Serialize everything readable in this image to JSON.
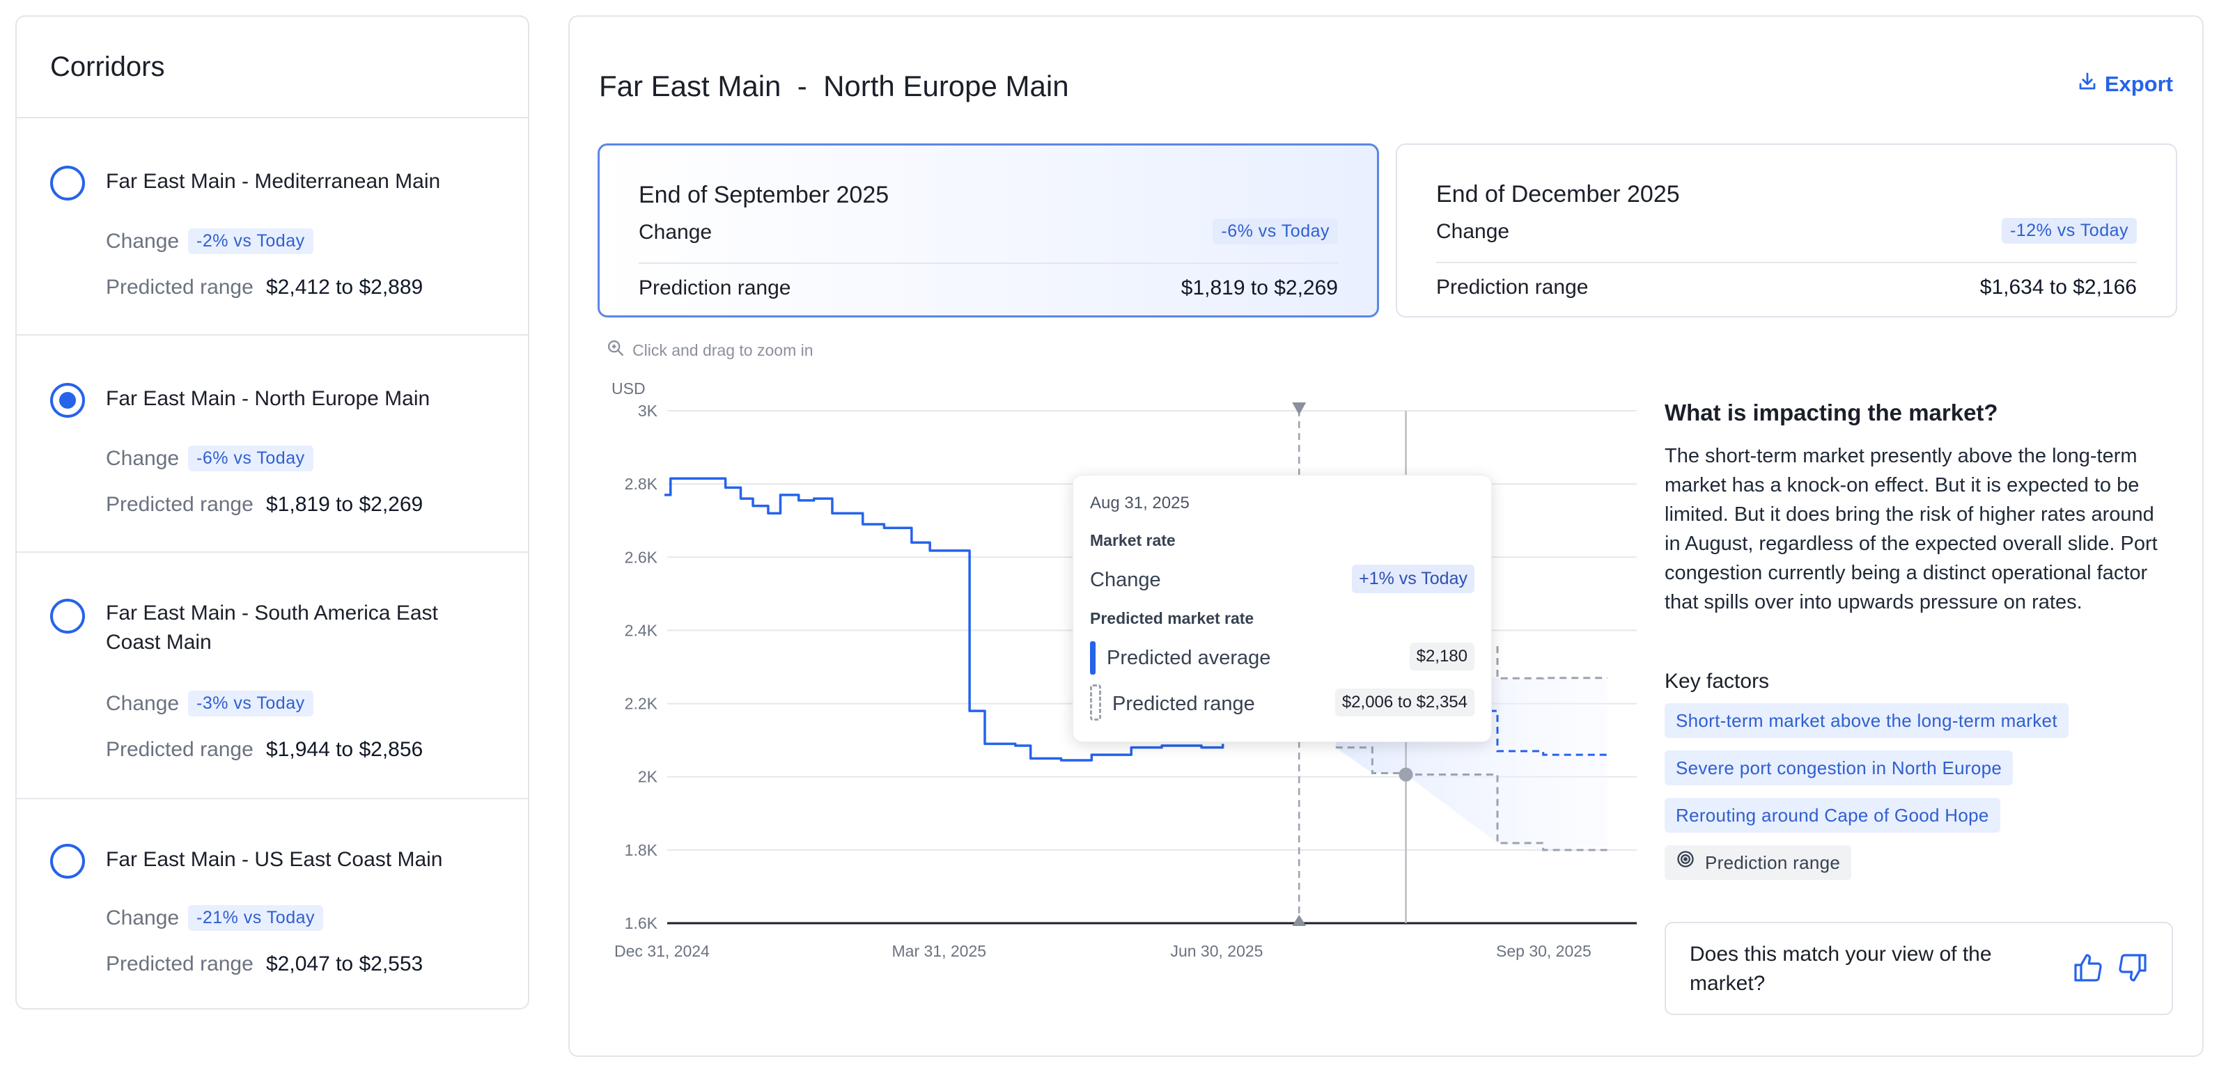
{
  "sidebar": {
    "title": "Corridors",
    "change_label": "Change",
    "range_label": "Predicted range",
    "items": [
      {
        "name": "Far East Main - Mediterranean Main",
        "badge": "-2% vs Today",
        "range": "$2,412 to $2,889",
        "selected": false
      },
      {
        "name": "Far East Main - North Europe Main",
        "badge": "-6% vs Today",
        "range": "$1,819 to $2,269",
        "selected": true
      },
      {
        "name": "Far East Main - South America East Coast Main",
        "badge": "-3% vs Today",
        "range": "$1,944 to $2,856",
        "selected": false
      },
      {
        "name": "Far East Main - US East Coast Main",
        "badge": "-21% vs Today",
        "range": "$2,047 to $2,553",
        "selected": false
      }
    ]
  },
  "main": {
    "title": "Far East Main  -  North Europe Main",
    "export_label": "Export",
    "cards": [
      {
        "title": "End of September 2025",
        "change_label": "Change",
        "badge": "-6% vs Today",
        "range_label": "Prediction range",
        "range": "$1,819 to $2,269",
        "active": true
      },
      {
        "title": "End of December 2025",
        "change_label": "Change",
        "badge": "-12% vs Today",
        "range_label": "Prediction range",
        "range": "$1,634 to $2,166",
        "active": false
      }
    ],
    "zoom_hint": "Click and drag to zoom in"
  },
  "tooltip": {
    "date": "Aug 31, 2025",
    "market_heading": "Market rate",
    "change_label": "Change",
    "change_badge": "+1% vs Today",
    "predicted_heading": "Predicted market rate",
    "avg_label": "Predicted average",
    "avg_value": "$2,180",
    "range_label": "Predicted range",
    "range_value": "$2,006 to $2,354"
  },
  "impact": {
    "title": "What is impacting the market?",
    "body": "The short-term market presently above the long-term market has a knock-on effect. But it is expected to be limited. But it does bring the risk of higher rates around in August, regardless of the expected overall slide. Port congestion currently being a distinct operational factor that spills over into upwards pressure on rates.",
    "key_factors_title": "Key factors",
    "factors": [
      "Short-term market above the long-term market",
      "Severe port congestion in North Europe",
      "Rerouting around Cape of Good Hope"
    ],
    "legend_chip": "Prediction range"
  },
  "feedback": {
    "question": "Does this match your view of the market?"
  },
  "icons": {
    "export": "download-icon",
    "zoom": "magnifier-icon",
    "thumbs_up": "thumbs-up-icon",
    "thumbs_down": "thumbs-down-icon",
    "legend": "target-icon"
  },
  "colors": {
    "accent": "#2563eb",
    "badge_bg": "#e8efff",
    "prediction_dashed": "#9ca3af"
  },
  "chart_data": {
    "type": "line",
    "ylabel": "USD",
    "ylim": [
      1600,
      3000
    ],
    "y_ticks": [
      "3K",
      "2.8K",
      "2.6K",
      "2.4K",
      "2.2K",
      "2K",
      "1.8K",
      "1.6K"
    ],
    "x_ticks": [
      "Dec 31, 2024",
      "Mar 31, 2025",
      "Jun 30, 2025",
      "Sep 30, 2025"
    ],
    "grid": true,
    "today_marker": "2025-07-27",
    "selected_date": "2025-08-31",
    "series": [
      {
        "name": "Market rate",
        "style": "solid",
        "x": [
          "2024-12-31",
          "2025-01-02",
          "2025-01-20",
          "2025-01-25",
          "2025-01-29",
          "2025-02-03",
          "2025-02-07",
          "2025-02-13",
          "2025-02-18",
          "2025-02-24",
          "2025-03-06",
          "2025-03-13",
          "2025-03-22",
          "2025-03-28",
          "2025-04-10",
          "2025-04-15",
          "2025-04-25",
          "2025-04-30",
          "2025-05-10",
          "2025-05-20",
          "2025-06-02",
          "2025-06-12",
          "2025-06-25",
          "2025-07-02"
        ],
        "y": [
          2770,
          2815,
          2790,
          2760,
          2740,
          2720,
          2770,
          2755,
          2760,
          2720,
          2690,
          2680,
          2640,
          2618,
          2180,
          2090,
          2085,
          2050,
          2045,
          2060,
          2080,
          2085,
          2080,
          2090
        ]
      },
      {
        "name": "Predicted average",
        "style": "dashed",
        "x": [
          "2025-08-08",
          "2025-08-31",
          "2025-09-30",
          "2025-10-15",
          "2025-11-05"
        ],
        "y": [
          2180,
          2180,
          2070,
          2060,
          2050
        ]
      },
      {
        "name": "Predicted range upper",
        "style": "dashed",
        "x": [
          "2025-08-08",
          "2025-08-31",
          "2025-09-30",
          "2025-10-15",
          "2025-11-05"
        ],
        "y": [
          2340,
          2354,
          2269,
          2270,
          2270
        ]
      },
      {
        "name": "Predicted range lower",
        "style": "dashed",
        "x": [
          "2025-08-08",
          "2025-08-20",
          "2025-08-31",
          "2025-09-30",
          "2025-10-15",
          "2025-11-05"
        ],
        "y": [
          2080,
          2010,
          2006,
          1819,
          1800,
          1810
        ]
      }
    ]
  }
}
